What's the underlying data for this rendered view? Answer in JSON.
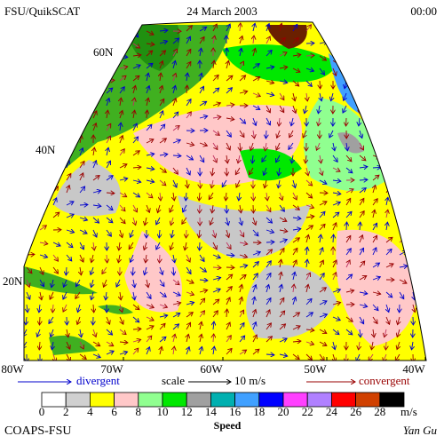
{
  "header": {
    "left": "FSU/QuikSCAT",
    "center": "24 March 2003",
    "right": "00:00"
  },
  "map": {
    "lat_labels": [
      "60N",
      "40N",
      "20N"
    ],
    "lon_labels": [
      "80W",
      "70W",
      "60W",
      "50W",
      "40W"
    ]
  },
  "legend": {
    "divergent": "divergent",
    "scale": "scale",
    "scale_value": "10 m/s",
    "convergent": "convergent"
  },
  "colorbar": {
    "labels": [
      "0",
      "2",
      "4",
      "6",
      "8",
      "10",
      "12",
      "14",
      "16",
      "18",
      "20",
      "22",
      "24",
      "26",
      "28"
    ],
    "colors": [
      "#ffffff",
      "#d0d0d0",
      "#ffff00",
      "#ffc8c8",
      "#90ff90",
      "#00e800",
      "#a0a0a0",
      "#00b0b0",
      "#40a0ff",
      "#0000ff",
      "#ff40ff",
      "#b080ff",
      "#ff0000",
      "#d04000",
      "#000000"
    ],
    "unit": "m/s",
    "title": "Speed"
  },
  "footer": {
    "left": "COAPS-FSU",
    "right": "Yan Gu"
  }
}
